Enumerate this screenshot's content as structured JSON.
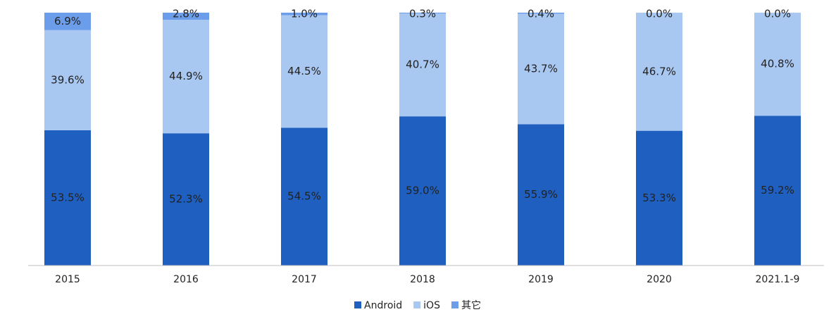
{
  "chart_data": {
    "type": "stacked_bar",
    "categories": [
      "2015",
      "2016",
      "2017",
      "2018",
      "2019",
      "2020",
      "2021.1-9"
    ],
    "series": [
      {
        "name": "Android",
        "color": "#1f5fc0",
        "values": [
          53.5,
          52.3,
          54.5,
          59.0,
          55.9,
          53.3,
          59.2
        ],
        "value_labels": [
          "53.5%",
          "52.3%",
          "54.5%",
          "59.0%",
          "55.9%",
          "53.3%",
          "59.2%"
        ]
      },
      {
        "name": "iOS",
        "color": "#a8c7f1",
        "values": [
          39.6,
          44.9,
          44.5,
          40.7,
          43.7,
          46.7,
          40.8
        ],
        "value_labels": [
          "39.6%",
          "44.9%",
          "44.5%",
          "40.7%",
          "43.7%",
          "46.7%",
          "40.8%"
        ]
      },
      {
        "name": "其它",
        "color": "#6c9deb",
        "values": [
          6.9,
          2.8,
          1.0,
          0.3,
          0.4,
          0.0,
          0.0
        ],
        "value_labels": [
          "6.9%",
          "2.8%",
          "1.0%",
          "0.3%",
          "0.4%",
          "0.0%",
          "0.0%"
        ]
      }
    ],
    "ylim": [
      0,
      100
    ],
    "legend": "bottom"
  }
}
